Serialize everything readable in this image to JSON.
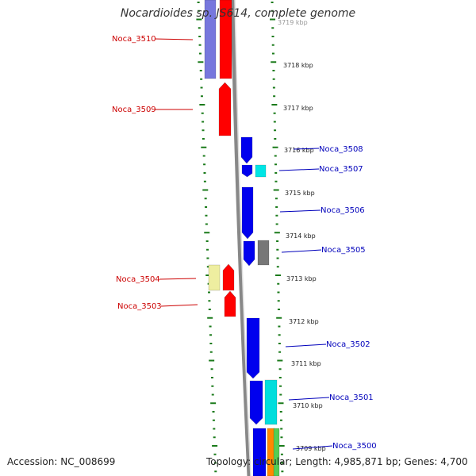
{
  "title": "Nocardioides sp. JS614, complete genome",
  "accession": "Accession: NC_008699",
  "topology": "Topology: circular; Length: 4,985,871 bp; Genes: 4,700",
  "colors": {
    "backbone": "#888888",
    "tick": "#1a7a1a",
    "label_left": "#cc0000",
    "label_right": "#0000bb"
  },
  "scale": {
    "ticks": [
      {
        "label": "3719 kbp",
        "value": 3719
      },
      {
        "label": "3718 kbp",
        "value": 3718
      },
      {
        "label": "3717 kbp",
        "value": 3717
      },
      {
        "label": "3716 kbp",
        "value": 3716
      },
      {
        "label": "3715 kbp",
        "value": 3715
      },
      {
        "label": "3714 kbp",
        "value": 3714
      },
      {
        "label": "3713 kbp",
        "value": 3713
      },
      {
        "label": "3712 kbp",
        "value": 3712
      },
      {
        "label": "3711 kbp",
        "value": 3711
      },
      {
        "label": "3710 kbp",
        "value": 3710
      },
      {
        "label": "3709 kbp",
        "value": 3709
      }
    ]
  },
  "genes": {
    "left": [
      {
        "label": "Noca_3510"
      },
      {
        "label": "Noca_3509"
      },
      {
        "label": "Noca_3504"
      },
      {
        "label": "Noca_3503"
      }
    ],
    "right": [
      {
        "label": "Noca_3508"
      },
      {
        "label": "Noca_3507"
      },
      {
        "label": "Noca_3506"
      },
      {
        "label": "Noca_3505"
      },
      {
        "label": "Noca_3502"
      },
      {
        "label": "Noca_3501"
      },
      {
        "label": "Noca_3500"
      }
    ]
  }
}
